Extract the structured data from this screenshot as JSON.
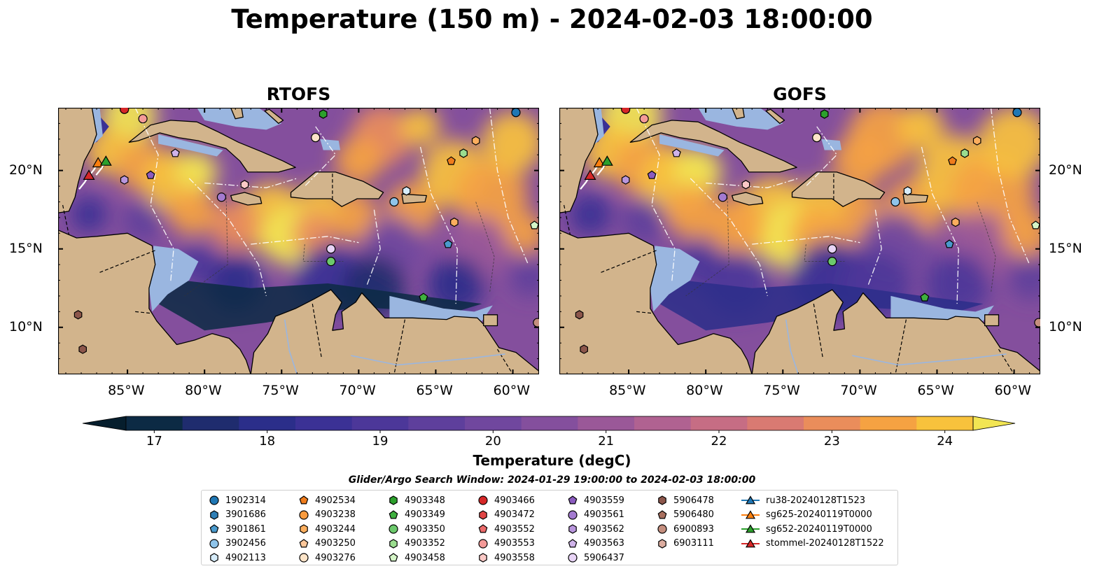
{
  "title": "Temperature (150 m) - 2024-02-03 18:00:00",
  "panels": [
    {
      "title": "RTOFS"
    },
    {
      "title": "GOFS"
    }
  ],
  "axes": {
    "lon_ticks": [
      "85°W",
      "80°W",
      "75°W",
      "70°W",
      "65°W",
      "60°W"
    ],
    "lon_values": [
      -85,
      -80,
      -75,
      -70,
      -65,
      -60
    ],
    "lat_ticks": [
      "20°N",
      "15°N",
      "10°N"
    ],
    "lat_values": [
      20,
      15,
      10
    ],
    "lon_range": [
      -89.5,
      -58.3
    ],
    "lat_range": [
      7.0,
      24.0
    ]
  },
  "colorbar": {
    "label": "Temperature (degC)",
    "ticks": [
      "17",
      "18",
      "19",
      "20",
      "21",
      "22",
      "23",
      "24"
    ],
    "range": [
      16.75,
      24.5
    ],
    "levels": [
      16.75,
      17.25,
      17.75,
      18.25,
      18.75,
      19.25,
      19.75,
      20.25,
      20.75,
      21.25,
      21.75,
      22.25,
      22.75,
      23.25,
      23.75,
      24.25
    ],
    "colors": [
      "#061e2d",
      "#0c2a44",
      "#1f2c6e",
      "#2b2e8a",
      "#3b3195",
      "#4c3799",
      "#5e3f9c",
      "#70479e",
      "#844f9d",
      "#9a5898",
      "#b06291",
      "#c66d84",
      "#d97a72",
      "#ea8d5b",
      "#f5a242",
      "#f8c23c",
      "#f2e553"
    ],
    "extend": "both"
  },
  "land_color": "#d2b48c",
  "shelf_color": "#9ab6e0",
  "search_window": "Glider/Argo Search Window: 2024-01-29 19:00:00 to 2024-02-03 18:00:00",
  "legend": [
    {
      "label": "1902314",
      "marker": "circle",
      "color": "#1f77b4"
    },
    {
      "label": "3901686",
      "marker": "hexagon",
      "color": "#2f7fb6"
    },
    {
      "label": "3901861",
      "marker": "pentagon",
      "color": "#4a9acd"
    },
    {
      "label": "3902456",
      "marker": "circle",
      "color": "#8fc4ea"
    },
    {
      "label": "4902113",
      "marker": "hexagon",
      "color": "#d6ecfa"
    },
    {
      "label": "4902534",
      "marker": "pentagon",
      "color": "#ef7c1c"
    },
    {
      "label": "4903238",
      "marker": "circle",
      "color": "#fa9b3e"
    },
    {
      "label": "4903244",
      "marker": "hexagon",
      "color": "#fbae5e"
    },
    {
      "label": "4903250",
      "marker": "pentagon",
      "color": "#fdc79a"
    },
    {
      "label": "4903276",
      "marker": "circle",
      "color": "#fde4c8"
    },
    {
      "label": "4903348",
      "marker": "hexagon",
      "color": "#2ca02c"
    },
    {
      "label": "4903349",
      "marker": "pentagon",
      "color": "#3fb03f"
    },
    {
      "label": "4903350",
      "marker": "circle",
      "color": "#6cc96c"
    },
    {
      "label": "4903352",
      "marker": "hexagon",
      "color": "#9bdd8f"
    },
    {
      "label": "4903458",
      "marker": "pentagon",
      "color": "#d5f5c7"
    },
    {
      "label": "4903466",
      "marker": "circle",
      "color": "#d62728"
    },
    {
      "label": "4903472",
      "marker": "hexagon",
      "color": "#e04545"
    },
    {
      "label": "4903552",
      "marker": "pentagon",
      "color": "#ec6b6b"
    },
    {
      "label": "4903553",
      "marker": "circle",
      "color": "#f49a98"
    },
    {
      "label": "4903558",
      "marker": "hexagon",
      "color": "#fbc9c6"
    },
    {
      "label": "4903559",
      "marker": "pentagon",
      "color": "#8b5bbf"
    },
    {
      "label": "4903561",
      "marker": "circle",
      "color": "#a37ad0"
    },
    {
      "label": "4903562",
      "marker": "hexagon",
      "color": "#b996dd"
    },
    {
      "label": "4903563",
      "marker": "pentagon",
      "color": "#cfb3e9"
    },
    {
      "label": "5906437",
      "marker": "circle",
      "color": "#e8d4f6"
    },
    {
      "label": "5906478",
      "marker": "hexagon",
      "color": "#8c564b"
    },
    {
      "label": "5906480",
      "marker": "pentagon",
      "color": "#a9705f"
    },
    {
      "label": "6900893",
      "marker": "circle",
      "color": "#c58f7f"
    },
    {
      "label": "6903111",
      "marker": "hexagon",
      "color": "#dcada0"
    },
    {
      "label": "ru38-20240128T1523",
      "marker": "triangle-line",
      "color": "#1f77b4"
    },
    {
      "label": "sg625-20240119T0000",
      "marker": "triangle-line",
      "color": "#ff7f0e"
    },
    {
      "label": "sg652-20240119T0000",
      "marker": "triangle-line",
      "color": "#2ca02c"
    },
    {
      "label": "stommel-20240128T1522",
      "marker": "triangle-line",
      "color": "#d62728"
    }
  ],
  "floats": [
    {
      "lon": -59.8,
      "lat": 23.7,
      "marker": "circle",
      "color": "#1f77b4"
    },
    {
      "lon": -67.7,
      "lat": 18.0,
      "marker": "circle",
      "color": "#8fc4ea"
    },
    {
      "lon": -66.9,
      "lat": 18.7,
      "marker": "hexagon",
      "color": "#d6ecfa"
    },
    {
      "lon": -64.2,
      "lat": 15.3,
      "marker": "pentagon",
      "color": "#4a9acd"
    },
    {
      "lon": -64.0,
      "lat": 20.6,
      "marker": "pentagon",
      "color": "#ef7c1c"
    },
    {
      "lon": -62.4,
      "lat": 21.9,
      "marker": "hexagon",
      "color": "#fbae5e"
    },
    {
      "lon": -63.2,
      "lat": 21.1,
      "marker": "hexagon",
      "color": "#9bdd8f"
    },
    {
      "lon": -63.8,
      "lat": 16.7,
      "marker": "hexagon",
      "color": "#fbae5e"
    },
    {
      "lon": -72.8,
      "lat": 22.1,
      "marker": "circle",
      "color": "#fde4c8"
    },
    {
      "lon": -72.3,
      "lat": 23.6,
      "marker": "hexagon",
      "color": "#2ca02c"
    },
    {
      "lon": -71.8,
      "lat": 15.0,
      "marker": "circle",
      "color": "#e8d4f6"
    },
    {
      "lon": -71.8,
      "lat": 14.2,
      "marker": "circle",
      "color": "#6cc96c"
    },
    {
      "lon": -65.8,
      "lat": 11.9,
      "marker": "pentagon",
      "color": "#3fb03f"
    },
    {
      "lon": -58.6,
      "lat": 16.5,
      "marker": "pentagon",
      "color": "#d5f5c7"
    },
    {
      "lon": -58.4,
      "lat": 10.3,
      "marker": "circle",
      "color": "#c58f7f"
    },
    {
      "lon": -78.9,
      "lat": 18.3,
      "marker": "circle",
      "color": "#a37ad0"
    },
    {
      "lon": -77.4,
      "lat": 19.1,
      "marker": "hexagon",
      "color": "#fbc9c6"
    },
    {
      "lon": -81.9,
      "lat": 21.1,
      "marker": "pentagon",
      "color": "#cfb3e9"
    },
    {
      "lon": -83.5,
      "lat": 19.7,
      "marker": "pentagon",
      "color": "#8b5bbf"
    },
    {
      "lon": -85.2,
      "lat": 19.4,
      "marker": "hexagon",
      "color": "#b996dd"
    },
    {
      "lon": -84.0,
      "lat": 23.3,
      "marker": "circle",
      "color": "#f49a98"
    },
    {
      "lon": -85.2,
      "lat": 23.9,
      "marker": "circle",
      "color": "#d62728"
    },
    {
      "lon": -88.2,
      "lat": 10.8,
      "marker": "hexagon",
      "color": "#8c564b"
    },
    {
      "lon": -87.9,
      "lat": 8.6,
      "marker": "hexagon",
      "color": "#8c564b"
    }
  ],
  "gliders": [
    {
      "lon": -86.9,
      "lat": 20.5,
      "color": "#ff7f0e"
    },
    {
      "lon": -86.4,
      "lat": 20.6,
      "color": "#2ca02c"
    },
    {
      "lon": -87.5,
      "lat": 19.7,
      "color": "#d62728"
    }
  ]
}
